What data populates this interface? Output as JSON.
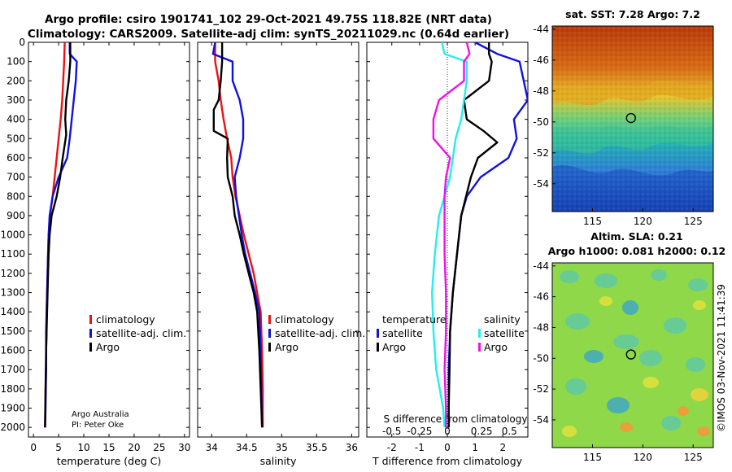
{
  "title_line1": "Argo profile: csiro 1901741_102 29-Oct-2021 49.75S 118.82E (NRT data)",
  "title_line2": "Climatology: CARS2009. Satellite-adj clim: synTS_20211029.nc (0.64d earlier)",
  "credit_line1": "Argo Australia",
  "credit_line2": "PI: Peter Oke",
  "watermark": "©IMOS 03-Nov-2021 11:41:39",
  "colors": {
    "climatology": "#ee1111",
    "satellite": "#1111dd",
    "argo": "#000000",
    "cyan": "#22eeee",
    "magenta": "#ee11ee"
  },
  "chart_data": [
    {
      "type": "line",
      "panel": "temperature",
      "xlabel": "temperature (deg C)",
      "ylabel": "",
      "xlim": [
        -1,
        31
      ],
      "ylim": [
        2050,
        0
      ],
      "xticks": [
        0,
        5,
        10,
        15,
        20,
        25,
        30
      ],
      "yticks": [
        0,
        100,
        200,
        300,
        400,
        500,
        600,
        700,
        800,
        900,
        1000,
        1100,
        1200,
        1300,
        1400,
        1500,
        1600,
        1700,
        1800,
        1900,
        2000
      ],
      "legend": [
        "climatology",
        "satellite-adj. clim.",
        "Argo"
      ],
      "series": [
        {
          "name": "climatology",
          "color": "red",
          "x": [
            6.2,
            6.1,
            5.9,
            5.7,
            5.4,
            5.0,
            4.6,
            4.2,
            3.8,
            3.3,
            3.0,
            2.9,
            2.8,
            2.7,
            2.6,
            2.6,
            2.5,
            2.5,
            2.4,
            2.3
          ],
          "y": [
            0,
            100,
            200,
            300,
            400,
            500,
            600,
            700,
            800,
            900,
            1000,
            1100,
            1200,
            1300,
            1400,
            1500,
            1600,
            1700,
            1800,
            2000
          ]
        },
        {
          "name": "satellite-adj. clim.",
          "color": "blue",
          "x": [
            7.2,
            7.2,
            8.6,
            8.4,
            8.0,
            7.6,
            7.2,
            6.7,
            5.0,
            3.8,
            3.2,
            3.0,
            2.9,
            2.8,
            2.7,
            2.6,
            2.5,
            2.5,
            2.4,
            2.3
          ],
          "y": [
            0,
            60,
            100,
            200,
            300,
            400,
            500,
            600,
            700,
            800,
            900,
            1000,
            1100,
            1200,
            1300,
            1400,
            1500,
            1700,
            1900,
            2000
          ]
        },
        {
          "name": "Argo",
          "color": "black",
          "x": [
            7.3,
            7.3,
            7.0,
            6.5,
            6.3,
            6.5,
            5.8,
            5.3,
            4.6,
            3.6,
            3.2,
            3.0,
            2.9,
            2.8,
            2.7,
            2.6,
            2.5,
            2.4,
            2.3
          ],
          "y": [
            0,
            100,
            200,
            300,
            400,
            480,
            600,
            700,
            800,
            900,
            1000,
            1100,
            1200,
            1300,
            1400,
            1500,
            1600,
            1800,
            2000
          ]
        }
      ]
    },
    {
      "type": "line",
      "panel": "salinity",
      "xlabel": "salinity",
      "xlim": [
        33.8,
        36.1
      ],
      "ylim": [
        2050,
        0
      ],
      "xticks": [
        34,
        34.5,
        35,
        35.5,
        36
      ],
      "xtick_labels": [
        "34",
        "34.5",
        "35",
        "35.5",
        "36"
      ],
      "legend": [
        "climatology",
        "satellite-adj. clim.",
        "Argo"
      ],
      "series": [
        {
          "name": "climatology",
          "color": "red",
          "x": [
            34.05,
            34.05,
            34.1,
            34.13,
            34.17,
            34.22,
            34.28,
            34.3,
            34.34,
            34.4,
            34.46,
            34.53,
            34.6,
            34.65,
            34.7,
            34.72,
            34.73,
            34.73
          ],
          "y": [
            0,
            100,
            200,
            300,
            400,
            500,
            600,
            700,
            800,
            900,
            1000,
            1100,
            1200,
            1300,
            1400,
            1600,
            1800,
            2000
          ]
        },
        {
          "name": "satellite-adj. clim.",
          "color": "blue",
          "x": [
            34.05,
            34.02,
            34.3,
            34.3,
            34.4,
            34.45,
            34.45,
            34.4,
            34.33,
            34.35,
            34.39,
            34.43,
            34.48,
            34.55,
            34.62,
            34.68,
            34.7,
            34.71,
            34.72
          ],
          "y": [
            0,
            60,
            100,
            200,
            300,
            400,
            500,
            600,
            700,
            800,
            900,
            1000,
            1100,
            1200,
            1300,
            1400,
            1600,
            1800,
            2000
          ]
        },
        {
          "name": "Argo",
          "color": "black",
          "x": [
            34.15,
            34.15,
            34.13,
            34.1,
            34.03,
            34.03,
            34.23,
            34.22,
            34.23,
            34.3,
            34.33,
            34.4,
            34.46,
            34.53,
            34.6,
            34.65,
            34.68,
            34.7,
            34.72
          ],
          "y": [
            0,
            100,
            200,
            300,
            350,
            460,
            500,
            600,
            700,
            800,
            900,
            1000,
            1100,
            1200,
            1300,
            1400,
            1600,
            1800,
            2000
          ]
        }
      ]
    },
    {
      "type": "line",
      "panel": "difference",
      "xlabel": "T difference from climatology",
      "top_xlabel": "S difference from climatology",
      "xlim": [
        -2.9,
        2.9
      ],
      "ylim": [
        2050,
        0
      ],
      "xticks": [
        -2,
        -1,
        0,
        1,
        2
      ],
      "s_ticks": [
        "-0.5",
        "-0.25",
        "0",
        "0.25",
        "0.5"
      ],
      "legend_groups": [
        {
          "title": "temperature",
          "items": [
            "satellite",
            "Argo"
          ]
        },
        {
          "title": "salinity",
          "items": [
            "satellite",
            "Argo"
          ]
        }
      ],
      "series": [
        {
          "name": "temperature satellite",
          "color": "blue",
          "x": [
            1.0,
            1.8,
            2.6,
            2.75,
            2.9,
            2.4,
            2.5,
            2.2,
            1.2,
            0.7,
            0.5,
            0.35,
            0.2,
            0.1,
            0.05,
            0.05,
            0.05
          ],
          "y": [
            0,
            60,
            100,
            200,
            300,
            400,
            500,
            600,
            700,
            800,
            900,
            1100,
            1300,
            1500,
            1700,
            1900,
            2000
          ]
        },
        {
          "name": "temperature Argo",
          "color": "black",
          "x": [
            1.5,
            1.5,
            1.6,
            1.5,
            0.6,
            0.7,
            1.3,
            1.8,
            1.1,
            0.85,
            0.5,
            0.35,
            0.2,
            0.1,
            0.08,
            0.05,
            0.05
          ],
          "y": [
            0,
            60,
            100,
            200,
            300,
            400,
            460,
            520,
            600,
            700,
            900,
            1100,
            1300,
            1500,
            1700,
            1900,
            2000
          ]
        },
        {
          "name": "salinity satellite",
          "color": "cyan",
          "x": [
            -0.2,
            -0.1,
            0.7,
            0.7,
            0.6,
            0.5,
            0.3,
            0.2,
            0.1,
            -0.1,
            -0.3,
            -0.45,
            -0.55,
            -0.5,
            -0.4,
            -0.15,
            -0.1
          ],
          "y": [
            0,
            60,
            100,
            200,
            300,
            400,
            500,
            600,
            700,
            800,
            900,
            1100,
            1300,
            1500,
            1700,
            1900,
            2000
          ]
        },
        {
          "name": "salinity Argo",
          "color": "magenta",
          "x": [
            0.7,
            0.8,
            0.6,
            0.6,
            -0.3,
            -0.5,
            -0.5,
            0.1,
            -0.05,
            -0.1,
            -0.1,
            -0.1,
            -0.05,
            -0.05,
            -0.1,
            -0.05,
            -0.05
          ],
          "y": [
            0,
            60,
            100,
            200,
            300,
            400,
            500,
            600,
            700,
            800,
            900,
            1100,
            1300,
            1500,
            1700,
            1900,
            2000
          ]
        }
      ]
    },
    {
      "type": "heatmap",
      "panel": "sst_map",
      "title": "sat. SST: 7.28 Argo: 7.2",
      "xlim": [
        111,
        127
      ],
      "ylim": [
        -55.8,
        -43.8
      ],
      "xticks": [
        115,
        120,
        125
      ],
      "yticks": [
        -44,
        -46,
        -48,
        -50,
        -52,
        -54
      ],
      "marker": {
        "lon": 118.82,
        "lat": -49.75
      }
    },
    {
      "type": "heatmap",
      "panel": "sla_map",
      "title_line1": "Altim. SLA: 0.21",
      "title_line2": "Argo h1000: 0.081 h2000: 0.12",
      "xlim": [
        111,
        127
      ],
      "ylim": [
        -55.8,
        -43.8
      ],
      "xticks": [
        115,
        120,
        125
      ],
      "yticks": [
        -44,
        -46,
        -48,
        -50,
        -52,
        -54
      ],
      "marker": {
        "lon": 118.82,
        "lat": -49.75
      }
    }
  ]
}
